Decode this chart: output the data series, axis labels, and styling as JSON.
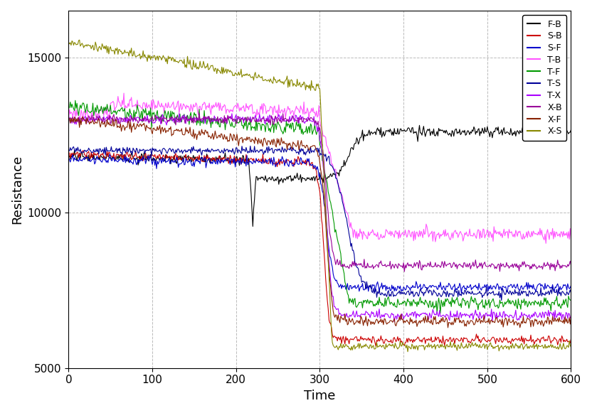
{
  "title": "",
  "xlabel": "Time",
  "ylabel": "Resistance",
  "xlim": [
    0,
    600
  ],
  "ylim": [
    5000,
    16500
  ],
  "yticks": [
    5000,
    10000,
    15000
  ],
  "xticks": [
    0,
    100,
    200,
    300,
    400,
    500,
    600
  ],
  "background_color": "#ffffff",
  "series_info": [
    {
      "label": "F-B",
      "color": "#000000"
    },
    {
      "label": "S-B",
      "color": "#cc0000"
    },
    {
      "label": "S-F",
      "color": "#0000cc"
    },
    {
      "label": "T-B",
      "color": "#ff55ff"
    },
    {
      "label": "T-F",
      "color": "#009900"
    },
    {
      "label": "T-S",
      "color": "#000099"
    },
    {
      "label": "T-X",
      "color": "#aa00ff"
    },
    {
      "label": "X-B",
      "color": "#990099"
    },
    {
      "label": "X-F",
      "color": "#882200"
    },
    {
      "label": "X-S",
      "color": "#888800"
    }
  ]
}
